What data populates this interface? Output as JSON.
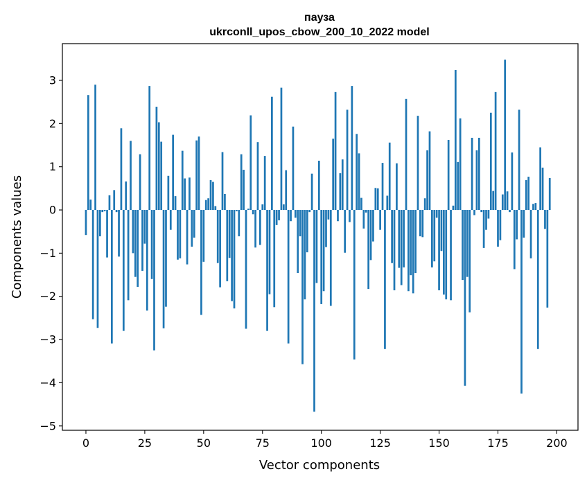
{
  "chart_data": {
    "type": "bar",
    "title_line1": "пауза",
    "title_line2": "ukrconll_upos_cbow_200_10_2022 model",
    "xlabel": "Vector components",
    "ylabel": "Components values",
    "xlim": [
      -10,
      209
    ],
    "ylim": [
      -5.1,
      3.85
    ],
    "x_ticks": [
      0,
      25,
      50,
      75,
      100,
      125,
      150,
      175,
      200
    ],
    "y_ticks": [
      3,
      2,
      1,
      0,
      -1,
      -2,
      -3,
      -4,
      -5
    ],
    "y_tick_labels": [
      "3",
      "2",
      "1",
      "0",
      "−1",
      "−2",
      "−3",
      "−4",
      "−5"
    ],
    "bar_color": "#1f77b4",
    "grid": false,
    "values": [
      -0.58,
      2.66,
      0.24,
      -2.53,
      2.9,
      -2.73,
      -0.61,
      -0.05,
      -0.03,
      -1.1,
      0.34,
      -3.09,
      0.46,
      -0.05,
      -1.08,
      1.89,
      -2.8,
      0.66,
      -2.09,
      1.6,
      -1.0,
      -1.55,
      -1.78,
      1.29,
      -1.41,
      -0.78,
      -2.33,
      2.87,
      -1.6,
      -3.25,
      2.39,
      2.03,
      1.58,
      -2.74,
      -2.24,
      0.79,
      -0.46,
      1.74,
      0.32,
      -1.15,
      -1.12,
      1.37,
      0.73,
      -1.26,
      0.75,
      -0.85,
      -0.64,
      1.61,
      1.7,
      -2.43,
      -1.2,
      0.23,
      0.27,
      0.69,
      0.65,
      0.09,
      -1.23,
      -1.79,
      1.34,
      0.37,
      -1.65,
      -1.11,
      -2.11,
      -2.28,
      -0.03,
      -0.61,
      1.29,
      0.93,
      -2.75,
      0.03,
      2.19,
      -0.1,
      -0.87,
      1.57,
      -0.81,
      0.13,
      1.25,
      -2.8,
      -1.95,
      2.62,
      -2.25,
      -0.35,
      -0.24,
      2.83,
      0.13,
      0.92,
      -3.09,
      -0.26,
      1.93,
      -0.18,
      -1.46,
      -0.61,
      -3.57,
      -2.07,
      -0.98,
      -0.05,
      0.84,
      -4.67,
      -1.69,
      1.14,
      -2.18,
      -1.88,
      -0.86,
      -0.22,
      -2.22,
      1.65,
      2.73,
      -0.26,
      0.85,
      1.17,
      -0.99,
      2.32,
      -0.28,
      2.87,
      -3.46,
      1.76,
      1.31,
      0.28,
      -0.43,
      -0.06,
      -1.83,
      -1.16,
      -0.73,
      0.51,
      0.5,
      -0.46,
      1.09,
      -3.22,
      0.33,
      1.56,
      -1.23,
      -1.86,
      1.08,
      -1.34,
      -1.74,
      -1.33,
      2.57,
      -1.88,
      -1.51,
      -1.93,
      -1.46,
      2.18,
      -0.61,
      -0.63,
      0.27,
      1.38,
      1.82,
      -1.33,
      -1.19,
      -0.18,
      -1.86,
      -0.95,
      -1.96,
      -2.07,
      1.62,
      -2.09,
      0.1,
      3.24,
      1.11,
      2.12,
      -1.62,
      -4.07,
      -1.55,
      -2.37,
      1.67,
      -0.12,
      1.38,
      1.67,
      -0.05,
      -0.88,
      -0.46,
      -0.2,
      2.25,
      0.44,
      2.73,
      -0.85,
      -0.7,
      0.36,
      3.48,
      0.43,
      -0.05,
      1.33,
      -1.37,
      -0.68,
      2.32,
      -4.25,
      -0.64,
      0.69,
      0.77,
      -1.12,
      0.14,
      0.16,
      -3.22,
      1.45,
      0.98,
      -0.44,
      -2.26,
      0.74
    ]
  }
}
